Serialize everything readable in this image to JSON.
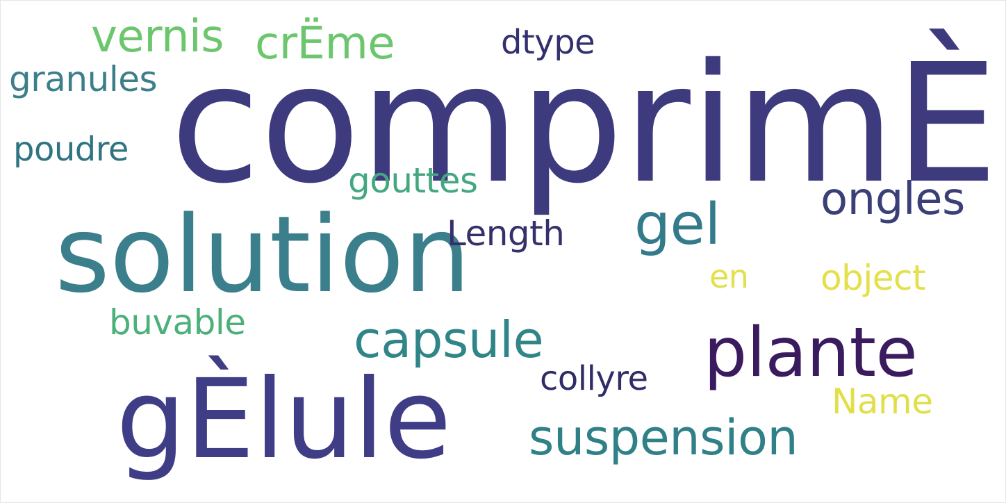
{
  "words": [
    {
      "text": "comprimÈ",
      "color": "#3e3a7e"
    },
    {
      "text": "solution",
      "color": "#3b7f8c"
    },
    {
      "text": "gÈlule",
      "color": "#3f3d85"
    },
    {
      "text": "plante",
      "color": "#3a1b5e"
    },
    {
      "text": "suspension",
      "color": "#2f8087"
    },
    {
      "text": "capsule",
      "color": "#2f8587"
    },
    {
      "text": "gel",
      "color": "#337a8a"
    },
    {
      "text": "ongles",
      "color": "#3a3f78"
    },
    {
      "text": "vernis",
      "color": "#6cc66d"
    },
    {
      "text": "crËme",
      "color": "#6cc66d"
    },
    {
      "text": "granules",
      "color": "#3c7f8a"
    },
    {
      "text": "poudre",
      "color": "#2f7480"
    },
    {
      "text": "gouttes",
      "color": "#43a880"
    },
    {
      "text": "buvable",
      "color": "#4cb07a"
    },
    {
      "text": "dtype",
      "color": "#33306e"
    },
    {
      "text": "Length",
      "color": "#35306c"
    },
    {
      "text": "collyre",
      "color": "#302c66"
    },
    {
      "text": "en",
      "color": "#e3e04a"
    },
    {
      "text": "object",
      "color": "#e3e04a"
    },
    {
      "text": "Name",
      "color": "#e1df48"
    }
  ]
}
